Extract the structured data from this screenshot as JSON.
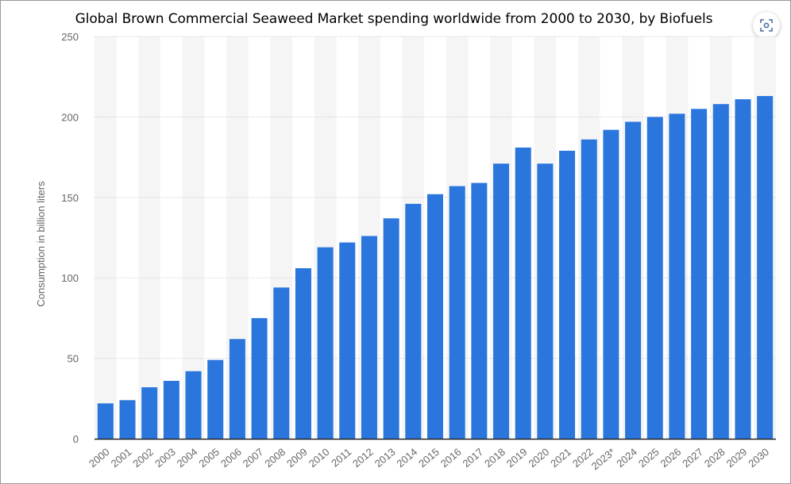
{
  "chart_data": {
    "type": "bar",
    "title": "Global Brown Commercial Seaweed Market spending worldwide from 2000 to 2030, by Biofuels",
    "xlabel": "",
    "ylabel": "Consumption in billion liters",
    "ylim": [
      0,
      250
    ],
    "yticks": [
      "0",
      "50",
      "100",
      "150",
      "200",
      "250"
    ],
    "grid": true,
    "bar_color": "#2a76dd",
    "categories": [
      "2000",
      "2001",
      "2002",
      "2003",
      "2004",
      "2005",
      "2006",
      "2007",
      "2008",
      "2009",
      "2010",
      "2011",
      "2012",
      "2013",
      "2014",
      "2015",
      "2016",
      "2017",
      "2018",
      "2019",
      "2020",
      "2021",
      "2022",
      "2023*",
      "2024",
      "2025",
      "2026",
      "2027",
      "2028",
      "2029",
      "2030"
    ],
    "values": [
      22,
      24,
      32,
      36,
      42,
      49,
      62,
      75,
      94,
      106,
      119,
      122,
      126,
      137,
      146,
      152,
      157,
      159,
      171,
      181,
      171,
      179,
      186,
      192,
      197,
      200,
      202,
      205,
      208,
      211,
      213
    ]
  },
  "ui": {
    "expand_icon": "fullscreen-icon"
  }
}
